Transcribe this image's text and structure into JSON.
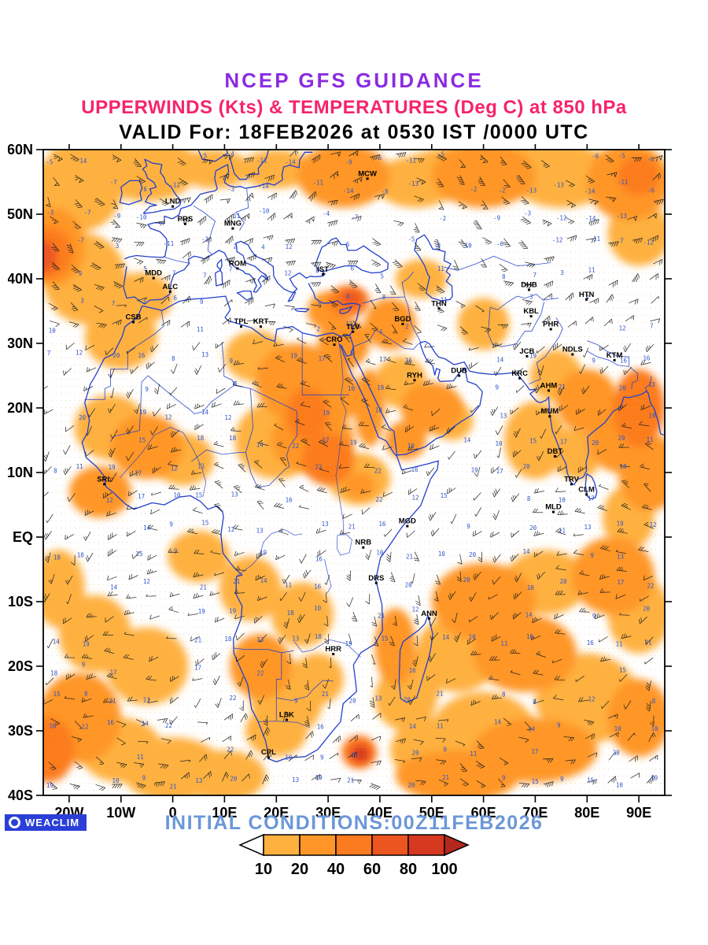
{
  "titles": {
    "line1": "NCEP GFS GUIDANCE",
    "line2": "UPPERWINDS (Kts) & TEMPERATURES (Deg C) at 850 hPa",
    "line3": "VALID For: 18FEB2026 at 0530 IST /0000 UTC"
  },
  "footer": {
    "initial_conditions": "INITIAL CONDITIONS:00Z11FEB2026",
    "logo_text": "WEACLIM"
  },
  "axes": {
    "lat_labels": [
      "60N",
      "50N",
      "40N",
      "30N",
      "20N",
      "10N",
      "EQ",
      "10S",
      "20S",
      "30S",
      "40S"
    ],
    "lat_values": [
      60,
      50,
      40,
      30,
      20,
      10,
      0,
      -10,
      -20,
      -30,
      -40
    ],
    "lon_labels": [
      "20W",
      "10W",
      "0",
      "10E",
      "20E",
      "30E",
      "40E",
      "50E",
      "60E",
      "70E",
      "80E",
      "90E"
    ],
    "lon_values": [
      -20,
      -10,
      0,
      10,
      20,
      30,
      40,
      50,
      60,
      70,
      80,
      90
    ],
    "lon_range": [
      -25,
      95
    ],
    "lat_range": [
      -40,
      60
    ]
  },
  "colorbar": {
    "labels": [
      "10",
      "20",
      "40",
      "60",
      "80",
      "100"
    ],
    "segment_colors": [
      "#FFB13F",
      "#FF9627",
      "#FC7B1E",
      "#EC5420",
      "#D63820"
    ],
    "left_arrow_color": "#FFFFFF",
    "right_arrow_color": "#B5281D"
  },
  "chart_data": {
    "type": "heatmap",
    "title": "NCEP GFS GUIDANCE",
    "subtitle": "UPPERWINDS (Kts) & TEMPERATURES (Deg C) at 850 hPa",
    "valid": "18FEB2026 at 0530 IST /0000 UTC",
    "initialized": "00Z11FEB2026",
    "level": "850 hPa",
    "temp_units": "Deg C",
    "wind_units": "Kts",
    "lon_range": [
      -25,
      95
    ],
    "lat_range": [
      -40,
      60
    ],
    "colorbar_levels": [
      10,
      20,
      40,
      60,
      80,
      100
    ],
    "shading_colors": [
      "#FFB13F",
      "#FF9627",
      "#FC7B1E",
      "#EC5420",
      "#D63820",
      "#B5281D"
    ],
    "temperature_regions": [
      [
        -20,
        53,
        10,
        6,
        0
      ],
      [
        -5,
        56,
        9,
        4,
        0
      ],
      [
        8,
        57,
        7,
        3,
        0
      ],
      [
        20,
        57,
        7,
        3,
        0
      ],
      [
        47,
        55,
        8,
        4,
        0
      ],
      [
        75,
        56,
        10,
        5,
        0
      ],
      [
        -10,
        59,
        14,
        3,
        0
      ],
      [
        65,
        58,
        20,
        3,
        0
      ],
      [
        90,
        47,
        6,
        5,
        0
      ],
      [
        -17,
        40,
        8,
        7,
        0
      ],
      [
        -6,
        37,
        6,
        4,
        0
      ],
      [
        -10,
        31,
        7,
        5,
        0
      ],
      [
        16,
        28,
        6,
        4,
        0
      ],
      [
        20,
        15,
        8,
        6,
        0
      ],
      [
        36,
        9,
        6,
        4,
        0
      ],
      [
        -12,
        17,
        7,
        5,
        0
      ],
      [
        2,
        12,
        6,
        4,
        0
      ],
      [
        48,
        40,
        5,
        3,
        0
      ],
      [
        60,
        33,
        5,
        4,
        0
      ],
      [
        44,
        24,
        5,
        4,
        0
      ],
      [
        54,
        18,
        4,
        3,
        0
      ],
      [
        74,
        25,
        5,
        4,
        0
      ],
      [
        78,
        13,
        5,
        4,
        0
      ],
      [
        70,
        15,
        6,
        6,
        0
      ],
      [
        88,
        3,
        5,
        5,
        0
      ],
      [
        72,
        -7,
        8,
        5,
        0
      ],
      [
        90,
        -12,
        6,
        6,
        0
      ],
      [
        55,
        -18,
        8,
        6,
        0
      ],
      [
        80,
        -25,
        10,
        7,
        0
      ],
      [
        60,
        -30,
        10,
        6,
        0
      ],
      [
        50,
        -33,
        8,
        5,
        0
      ],
      [
        48,
        -22,
        4,
        5,
        0
      ],
      [
        22,
        -25,
        7,
        6,
        0
      ],
      [
        28,
        -22,
        5,
        4,
        0
      ],
      [
        20,
        -30,
        6,
        4,
        0
      ],
      [
        -10,
        -33,
        8,
        5,
        0
      ],
      [
        0,
        -36,
        10,
        5,
        0
      ],
      [
        10,
        -37,
        8,
        4,
        0
      ],
      [
        -5,
        -20,
        8,
        6,
        0
      ],
      [
        -15,
        -15,
        7,
        6,
        0
      ],
      [
        -22,
        -8,
        5,
        6,
        0
      ],
      [
        5,
        -3,
        6,
        4,
        0
      ],
      [
        15,
        -8,
        6,
        5,
        0
      ],
      [
        25,
        -12,
        6,
        5,
        0
      ],
      [
        45,
        -25,
        6,
        5,
        0
      ],
      [
        33,
        56,
        9,
        5,
        1
      ],
      [
        60,
        56,
        10,
        5,
        1
      ],
      [
        88,
        55,
        8,
        6,
        1
      ],
      [
        -23,
        45,
        6,
        6,
        1
      ],
      [
        24,
        24,
        8,
        6,
        1
      ],
      [
        30,
        22,
        6,
        5,
        1
      ],
      [
        27,
        15,
        8,
        5,
        1
      ],
      [
        36,
        8,
        3,
        2,
        1
      ],
      [
        -5,
        14,
        7,
        5,
        1
      ],
      [
        -14,
        7,
        6,
        4,
        1
      ],
      [
        33,
        30,
        5,
        4,
        1
      ],
      [
        42,
        33,
        5,
        4,
        1
      ],
      [
        30,
        35,
        4,
        3,
        1
      ],
      [
        50,
        20,
        6,
        4,
        1
      ],
      [
        45,
        15,
        4,
        3,
        1
      ],
      [
        38,
        20,
        3,
        6,
        1
      ],
      [
        80,
        21,
        6,
        5,
        1
      ],
      [
        86,
        16,
        6,
        6,
        1
      ],
      [
        92,
        10,
        6,
        6,
        1
      ],
      [
        60,
        -10,
        10,
        6,
        1
      ],
      [
        85,
        -6,
        8,
        6,
        1
      ],
      [
        68,
        -18,
        10,
        6,
        1
      ],
      [
        90,
        -28,
        6,
        6,
        1
      ],
      [
        70,
        -33,
        12,
        5,
        1
      ],
      [
        43,
        -17,
        4,
        6,
        1
      ],
      [
        17,
        -20,
        6,
        5,
        1
      ],
      [
        -18,
        -28,
        8,
        7,
        1
      ],
      [
        55,
        -37,
        12,
        4,
        1
      ],
      [
        -24,
        44,
        4.5,
        4,
        2
      ],
      [
        30,
        12,
        5,
        4,
        2
      ],
      [
        90,
        20,
        5,
        6,
        2
      ],
      [
        -24,
        -33,
        5,
        5,
        2
      ],
      [
        34,
        36.5,
        4,
        2.5,
        2
      ],
      [
        26,
        19,
        4,
        4,
        2
      ],
      [
        36,
        -33.3,
        3.4,
        2.6,
        2
      ],
      [
        90,
        56,
        4,
        3,
        2
      ],
      [
        -25,
        43.5,
        2.5,
        2.5,
        3
      ],
      [
        34.5,
        37,
        2,
        1.2,
        3
      ],
      [
        36.2,
        -33.5,
        2,
        1.5,
        3
      ],
      [
        36.3,
        -33.6,
        1.1,
        0.8,
        4
      ],
      [
        36.4,
        -33.6,
        0.5,
        0.4,
        5
      ]
    ],
    "stations": [
      {
        "id": "MCW",
        "lon": 37.6,
        "lat": 55.8
      },
      {
        "id": "LND",
        "lon": 0,
        "lat": 51.5
      },
      {
        "id": "PRS",
        "lon": 2.4,
        "lat": 48.8
      },
      {
        "id": "MNG",
        "lon": 11.6,
        "lat": 48.1
      },
      {
        "id": "ROM",
        "lon": 12.5,
        "lat": 41.9
      },
      {
        "id": "IST",
        "lon": 29,
        "lat": 41
      },
      {
        "id": "MDD",
        "lon": -3.7,
        "lat": 40.4
      },
      {
        "id": "ALC",
        "lon": -0.5,
        "lat": 38.3
      },
      {
        "id": "CSB",
        "lon": -7.6,
        "lat": 33.6
      },
      {
        "id": "TPL",
        "lon": 13.2,
        "lat": 32.9
      },
      {
        "id": "KRT",
        "lon": 17,
        "lat": 32.9
      },
      {
        "id": "TLV",
        "lon": 34.8,
        "lat": 32.1
      },
      {
        "id": "CRO",
        "lon": 31.2,
        "lat": 30.1
      },
      {
        "id": "BGD",
        "lon": 44.4,
        "lat": 33.3
      },
      {
        "id": "THN",
        "lon": 51.4,
        "lat": 35.7
      },
      {
        "id": "DHB",
        "lon": 68.8,
        "lat": 38.6
      },
      {
        "id": "KBL",
        "lon": 69.2,
        "lat": 34.5
      },
      {
        "id": "HTN",
        "lon": 79.9,
        "lat": 37.1
      },
      {
        "id": "PHR",
        "lon": 73,
        "lat": 32.5
      },
      {
        "id": "NDLS",
        "lon": 77.2,
        "lat": 28.6
      },
      {
        "id": "KTM",
        "lon": 85.3,
        "lat": 27.7
      },
      {
        "id": "JCB",
        "lon": 68.4,
        "lat": 28.3
      },
      {
        "id": "DUB",
        "lon": 55.3,
        "lat": 25.3
      },
      {
        "id": "KRC",
        "lon": 67,
        "lat": 24.9
      },
      {
        "id": "AHM",
        "lon": 72.6,
        "lat": 23
      },
      {
        "id": "MUM",
        "lon": 72.8,
        "lat": 19
      },
      {
        "id": "RYH",
        "lon": 46.7,
        "lat": 24.6
      },
      {
        "id": "DBT",
        "lon": 73.8,
        "lat": 12.8
      },
      {
        "id": "TRV",
        "lon": 77,
        "lat": 8.5
      },
      {
        "id": "CLM",
        "lon": 79.9,
        "lat": 6.9
      },
      {
        "id": "MLD",
        "lon": 73.5,
        "lat": 4.2
      },
      {
        "id": "SRL",
        "lon": -13.2,
        "lat": 8.5
      },
      {
        "id": "MGD",
        "lon": 45.3,
        "lat": 2
      },
      {
        "id": "NRB",
        "lon": 36.8,
        "lat": -1.3
      },
      {
        "id": "DRS",
        "lon": 39.3,
        "lat": -6.8
      },
      {
        "id": "ANN",
        "lon": 49.5,
        "lat": -12.3
      },
      {
        "id": "HRR",
        "lon": 31,
        "lat": -17.8
      },
      {
        "id": "LSK",
        "lon": 22,
        "lat": -28
      },
      {
        "id": "CPL",
        "lon": 18.5,
        "lat": -33.8
      }
    ],
    "colors": {
      "title1": "#8b2be2",
      "title2": "#f6246c",
      "coastline": "#2340cc",
      "init_text": "#6b97d8",
      "logo_bg": "#2b3fd8"
    }
  }
}
